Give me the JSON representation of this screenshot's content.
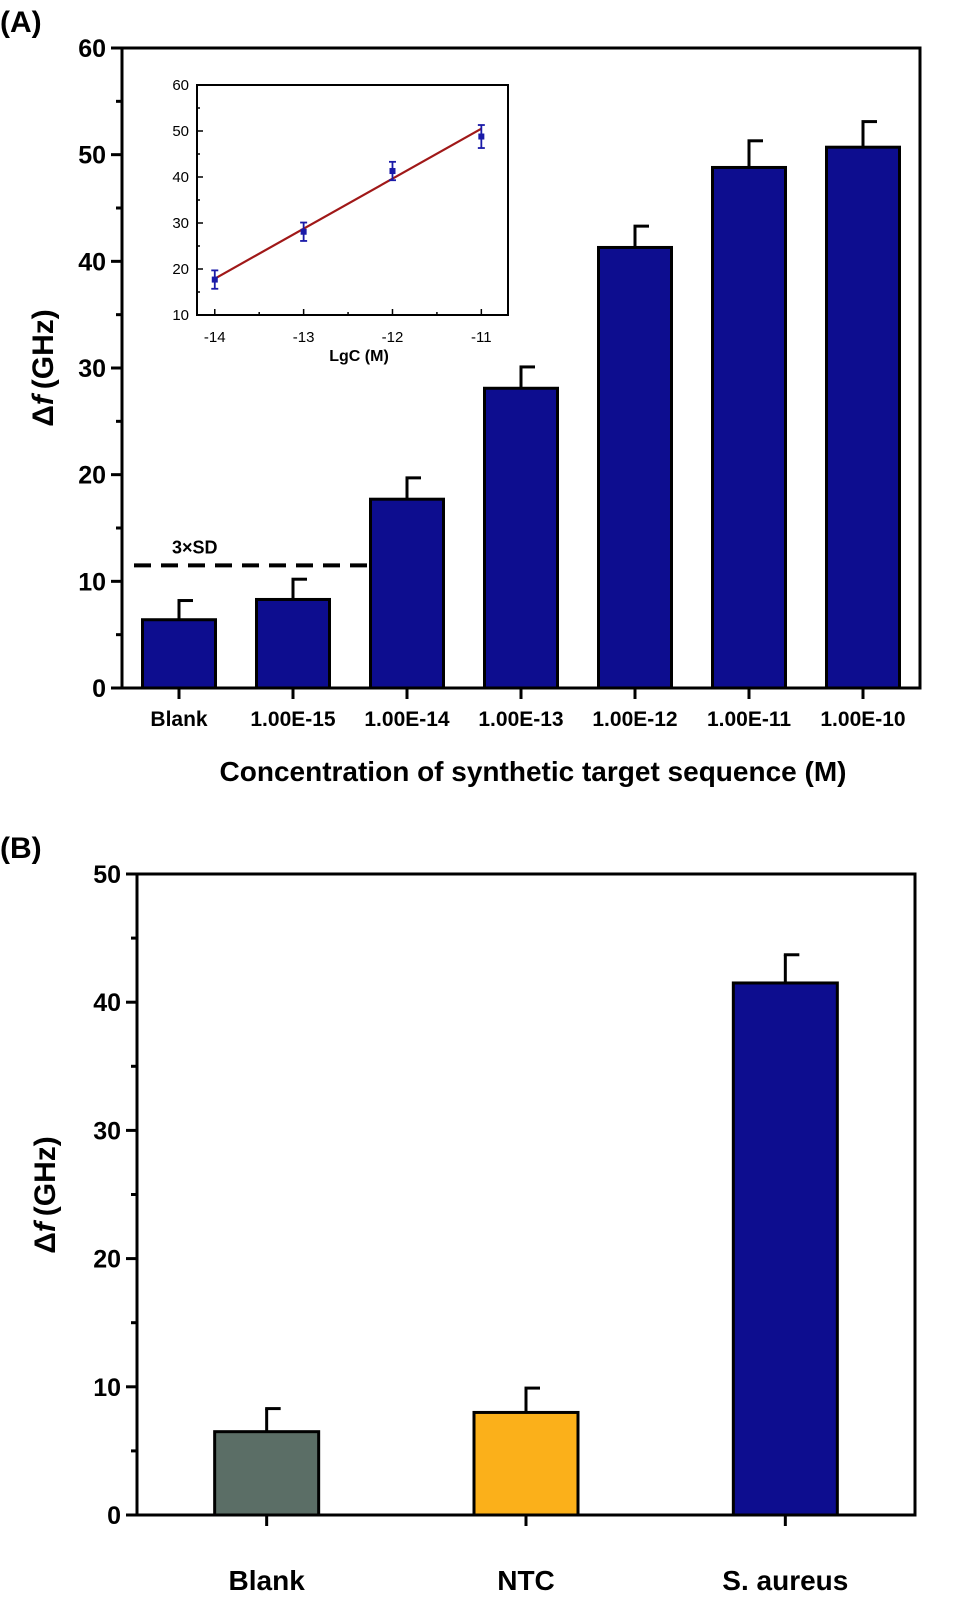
{
  "chart_data": [
    {
      "panel_label": "(A)",
      "type": "bar",
      "xlabel": "Concentration of synthetic target sequence (M)",
      "ylabel_symbol": "Δ",
      "ylabel_italic": "f",
      "ylabel_unit": "(GHz)",
      "ylim": [
        0,
        60
      ],
      "yticks": [
        0,
        10,
        20,
        30,
        40,
        50,
        60
      ],
      "categories": [
        "Blank",
        "1.00E-15",
        "1.00E-14",
        "1.00E-13",
        "1.00E-12",
        "1.00E-11",
        "1.00E-10"
      ],
      "values": [
        6.4,
        8.3,
        17.7,
        28.1,
        41.3,
        48.8,
        50.7
      ],
      "errors": [
        1.8,
        1.9,
        2.0,
        2.0,
        2.0,
        2.5,
        2.4
      ],
      "colors": [
        "#0d0d8f",
        "#0d0d8f",
        "#0d0d8f",
        "#0d0d8f",
        "#0d0d8f",
        "#0d0d8f",
        "#0d0d8f"
      ],
      "threshold": {
        "label": "3×SD",
        "value": 11.5
      },
      "grid": false,
      "inset": {
        "type": "scatter",
        "xlabel": "LgC (M)",
        "xlim": [
          -14.2,
          -10.7
        ],
        "ylim": [
          10,
          60
        ],
        "xticks": [
          -14,
          -13,
          -12,
          -11
        ],
        "yticks": [
          10,
          20,
          30,
          40,
          50,
          60
        ],
        "x": [
          -14,
          -13,
          -12,
          -11
        ],
        "y": [
          17.7,
          28.1,
          41.3,
          48.8
        ],
        "errors": [
          2.0,
          2.0,
          2.0,
          2.5
        ],
        "fit_line": {
          "x": [
            -14,
            -11
          ],
          "y": [
            17.9,
            50.5
          ]
        },
        "point_color": "#1a1aa8",
        "line_color": "#a01818"
      }
    },
    {
      "panel_label": "(B)",
      "type": "bar",
      "xlabel": "",
      "ylabel_symbol": "Δ",
      "ylabel_italic": "f",
      "ylabel_unit": "(GHz)",
      "ylim": [
        0,
        50
      ],
      "yticks": [
        0,
        10,
        20,
        30,
        40,
        50
      ],
      "categories": [
        "Blank",
        "NTC",
        "S. aureus"
      ],
      "values": [
        6.5,
        8.0,
        41.5
      ],
      "errors": [
        1.8,
        1.9,
        2.2
      ],
      "colors": [
        "#5b6e66",
        "#fbb01a",
        "#0d0d8f"
      ],
      "grid": false
    }
  ]
}
